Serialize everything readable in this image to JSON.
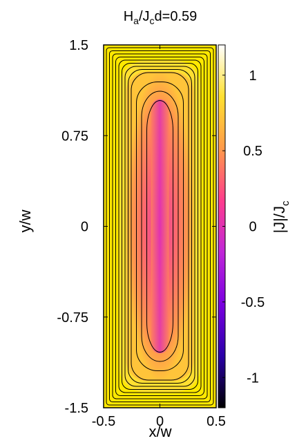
{
  "chart_data": {
    "type": "heatmap",
    "title_base": "H",
    "title_sub1": "a",
    "title_mid": "/J",
    "title_sub2": "c",
    "title_tail": "d=0.59",
    "xlabel": "x/w",
    "ylabel": "y/w",
    "colorbar_label_base": "|J|/J",
    "colorbar_label_sub": "c",
    "xlim": [
      -0.5,
      0.5
    ],
    "ylim": [
      -1.5,
      1.5
    ],
    "x_ticks": [
      -0.5,
      0,
      0.5
    ],
    "x_tick_labels": [
      "-0.5",
      "0",
      "0.5"
    ],
    "y_ticks": [
      1.5,
      0.75,
      0,
      -0.75,
      -1.5
    ],
    "y_tick_labels": [
      "1.5",
      "0.75",
      "0",
      "-0.75",
      "-1.5"
    ],
    "colorbar_range": [
      -1.2,
      1.2
    ],
    "colorbar_ticks": [
      1,
      0.5,
      0,
      -0.5,
      -1
    ],
    "colorbar_tick_labels": [
      "1",
      "0.5",
      "0",
      "-0.5",
      "-1"
    ],
    "colormap": [
      "#000000",
      "#2a00a8",
      "#7a00e0",
      "#c026d8",
      "#ff3c8c",
      "#ff9a4a",
      "#ffe030",
      "#ffffff"
    ],
    "background_color": "#ffe800",
    "saturated_value": 1,
    "core_value": 0,
    "contour_levels": [
      0.08,
      0.16,
      0.24,
      0.32,
      0.4,
      0.48,
      0.56,
      0.64,
      0.72,
      0.8,
      0.88,
      0.96
    ],
    "grid": false
  }
}
